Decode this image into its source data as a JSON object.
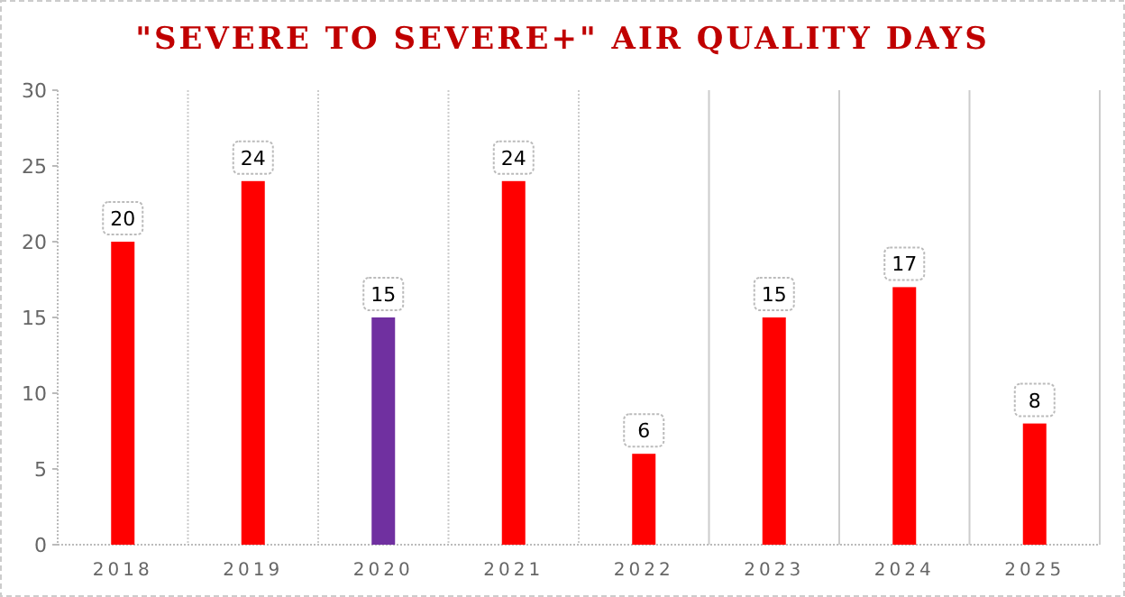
{
  "chart_data": {
    "type": "bar",
    "title": "\"SEVERE TO SEVERE+\" AIR QUALITY DAYS",
    "categories": [
      "2018",
      "2019",
      "2020",
      "2021",
      "2022",
      "2023",
      "2024",
      "2025"
    ],
    "values": [
      20,
      24,
      15,
      24,
      6,
      15,
      17,
      8
    ],
    "colors": [
      "#ff0000",
      "#ff0000",
      "#7030a0",
      "#ff0000",
      "#ff0000",
      "#ff0000",
      "#ff0000",
      "#ff0000"
    ],
    "ylim": [
      0,
      30
    ],
    "yticks": [
      0,
      5,
      10,
      15,
      20,
      25,
      30
    ],
    "grid": "x",
    "data_labels": true
  }
}
